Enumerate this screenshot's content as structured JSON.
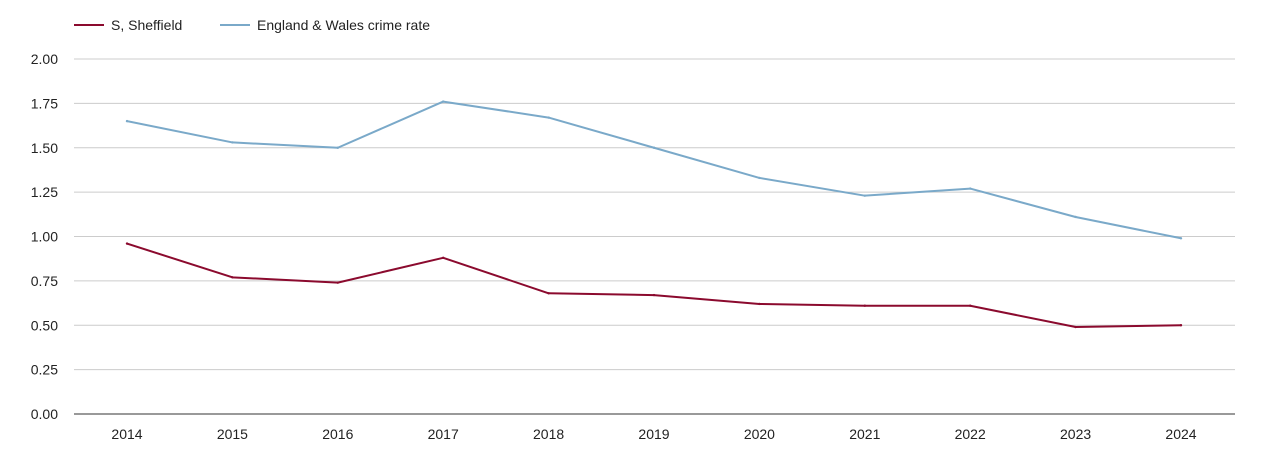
{
  "chart_data": {
    "type": "line",
    "title": "",
    "xlabel": "",
    "ylabel": "",
    "categories": [
      "2014",
      "2015",
      "2016",
      "2017",
      "2018",
      "2019",
      "2020",
      "2021",
      "2022",
      "2023",
      "2024"
    ],
    "ylim": [
      0,
      2
    ],
    "yticks": [
      "0.00",
      "0.25",
      "0.50",
      "0.75",
      "1.00",
      "1.25",
      "1.50",
      "1.75",
      "2.00"
    ],
    "grid": true,
    "legend_position": "top-left",
    "series": [
      {
        "name": "S, Sheffield",
        "color": "#8b0a2e",
        "values": [
          0.96,
          0.77,
          0.74,
          0.88,
          0.68,
          0.67,
          0.62,
          0.61,
          0.61,
          0.49,
          0.5
        ]
      },
      {
        "name": "England & Wales crime rate",
        "color": "#7aa9c9",
        "values": [
          1.65,
          1.53,
          1.5,
          1.76,
          1.67,
          1.5,
          1.33,
          1.23,
          1.27,
          1.11,
          0.99
        ]
      }
    ]
  }
}
